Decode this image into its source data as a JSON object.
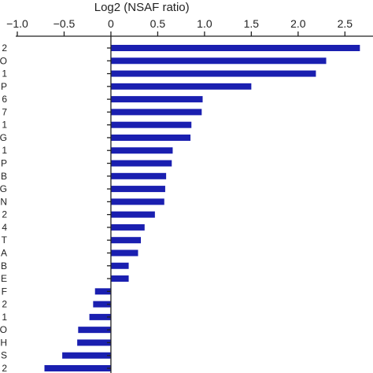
{
  "chart_data": {
    "type": "bar",
    "orientation": "horizontal",
    "xlabel": "Log2 (NSAF ratio)",
    "ylabel": "",
    "xlim": [
      -1.0,
      2.8
    ],
    "xticks": [
      -1.0,
      -0.5,
      0,
      0.5,
      1.0,
      1.5,
      2.0,
      2.5
    ],
    "xtick_labels": [
      "−1.0",
      "−0.5",
      "0",
      "0.5",
      "1.0",
      "1.5",
      "2.0",
      "2.5"
    ],
    "axis_position": "top",
    "grid": false,
    "bar_color": "#1a1fb0",
    "categories": [
      "2",
      "O",
      "1",
      "P",
      "6",
      "7",
      "1",
      "G",
      "1",
      "P",
      "B",
      "G",
      "N",
      "2",
      "4",
      "T",
      "A",
      "B",
      "E",
      "F",
      "2",
      "1",
      "O",
      "H",
      "S",
      "2"
    ],
    "values": [
      2.66,
      2.3,
      2.19,
      1.5,
      0.98,
      0.97,
      0.86,
      0.85,
      0.66,
      0.65,
      0.59,
      0.58,
      0.57,
      0.47,
      0.36,
      0.32,
      0.29,
      0.19,
      0.19,
      -0.17,
      -0.19,
      -0.23,
      -0.35,
      -0.36,
      -0.52,
      -0.71
    ]
  }
}
